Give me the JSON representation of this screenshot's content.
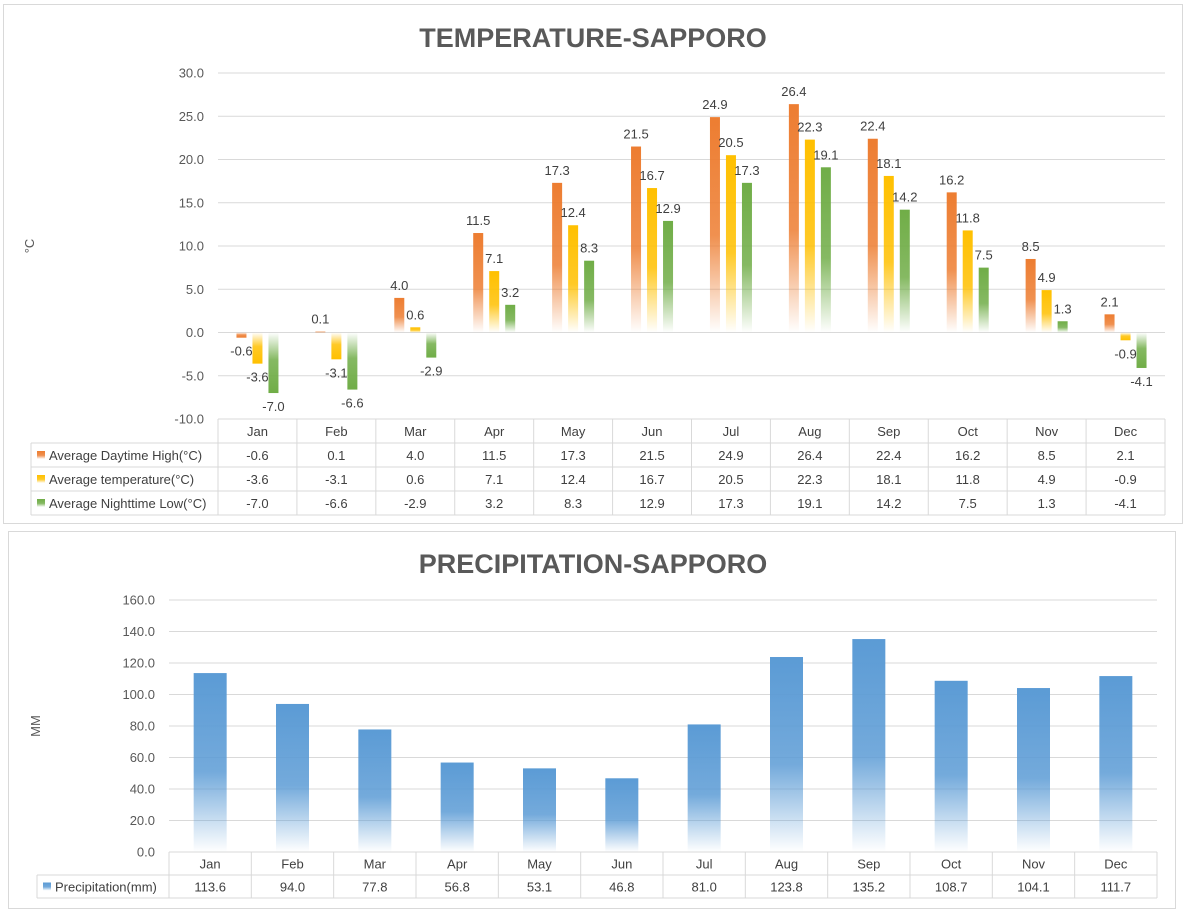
{
  "chart_data": [
    {
      "type": "bar",
      "title": "TEMPERATURE-SAPPORO",
      "ylabel": "°C",
      "ylim": [
        -10,
        30
      ],
      "yticks": [
        "30.0",
        "25.0",
        "20.0",
        "15.0",
        "10.0",
        "5.0",
        "0.0",
        "-5.0",
        "-10.0"
      ],
      "categories": [
        "Jan",
        "Feb",
        "Mar",
        "Apr",
        "May",
        "Jun",
        "Jul",
        "Aug",
        "Sep",
        "Oct",
        "Nov",
        "Dec"
      ],
      "data_table": true,
      "series": [
        {
          "name": "Average Daytime High(°C)",
          "color": "#ED7D31",
          "values": [
            -0.6,
            0.1,
            4.0,
            11.5,
            17.3,
            21.5,
            24.9,
            26.4,
            22.4,
            16.2,
            8.5,
            2.1
          ],
          "labels": [
            "-0.6",
            "0.1",
            "4.0",
            "11.5",
            "17.3",
            "21.5",
            "24.9",
            "26.4",
            "22.4",
            "16.2",
            "8.5",
            "2.1"
          ]
        },
        {
          "name": "Average temperature(°C)",
          "color": "#FFC000",
          "values": [
            -3.6,
            -3.1,
            0.6,
            7.1,
            12.4,
            16.7,
            20.5,
            22.3,
            18.1,
            11.8,
            4.9,
            -0.9
          ],
          "labels": [
            "-3.6",
            "-3.1",
            "0.6",
            "7.1",
            "12.4",
            "16.7",
            "20.5",
            "22.3",
            "18.1",
            "11.8",
            "4.9",
            "-0.9"
          ]
        },
        {
          "name": "Average Nighttime Low(°C)",
          "color": "#70AD47",
          "values": [
            -7.0,
            -6.6,
            -2.9,
            3.2,
            8.3,
            12.9,
            17.3,
            19.1,
            14.2,
            7.5,
            1.3,
            -4.1
          ],
          "labels": [
            "-7.0",
            "-6.6",
            "-2.9",
            "3.2",
            "8.3",
            "12.9",
            "17.3",
            "19.1",
            "14.2",
            "7.5",
            "1.3",
            "-4.1"
          ]
        }
      ]
    },
    {
      "type": "bar",
      "title": "PRECIPITATION-SAPPORO",
      "ylabel": "MM",
      "ylim": [
        0,
        160
      ],
      "yticks": [
        "160.0",
        "140.0",
        "120.0",
        "100.0",
        "80.0",
        "60.0",
        "40.0",
        "20.0",
        "0.0"
      ],
      "categories": [
        "Jan",
        "Feb",
        "Mar",
        "Apr",
        "May",
        "Jun",
        "Jul",
        "Aug",
        "Sep",
        "Oct",
        "Nov",
        "Dec"
      ],
      "data_table": true,
      "series": [
        {
          "name": "Precipitation(mm)",
          "color": "#5B9BD5",
          "values": [
            113.6,
            94.0,
            77.8,
            56.8,
            53.1,
            46.8,
            81.0,
            123.8,
            135.2,
            108.7,
            104.1,
            111.7
          ],
          "labels": [
            "113.6",
            "94.0",
            "77.8",
            "56.8",
            "53.1",
            "46.8",
            "81.0",
            "123.8",
            "135.2",
            "108.7",
            "104.1",
            "111.7"
          ]
        }
      ]
    }
  ]
}
